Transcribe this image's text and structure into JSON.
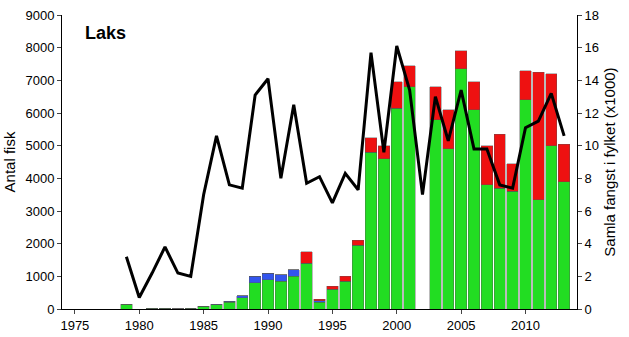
{
  "chart_data": {
    "type": "bar",
    "title": "Laks",
    "y_label": "Antal fisk",
    "y2_label": "Samla fangst i fylket (x1000)",
    "stacked": true,
    "grid": false,
    "x": [
      1979,
      1980,
      1981,
      1982,
      1983,
      1984,
      1985,
      1986,
      1987,
      1988,
      1989,
      1990,
      1991,
      1992,
      1993,
      1994,
      1995,
      1996,
      1997,
      1998,
      1999,
      2000,
      2001,
      2002,
      2003,
      2004,
      2005,
      2006,
      2007,
      2008,
      2009,
      2010,
      2011,
      2012,
      2013
    ],
    "series": [
      {
        "type": "bar",
        "color": "#22dd22",
        "values": [
          150,
          0,
          20,
          20,
          10,
          30,
          80,
          130,
          200,
          350,
          800,
          900,
          850,
          1000,
          1400,
          200,
          600,
          850,
          1950,
          4800,
          4600,
          6150,
          6800,
          null,
          5800,
          4900,
          7350,
          6100,
          3800,
          3700,
          3600,
          6400,
          3350,
          5000,
          3900
        ]
      },
      {
        "type": "bar",
        "color": "#3355ee",
        "values": [
          0,
          0,
          0,
          0,
          0,
          0,
          0,
          20,
          30,
          60,
          200,
          200,
          200,
          200,
          0,
          50,
          0,
          0,
          0,
          0,
          0,
          0,
          0,
          null,
          0,
          0,
          0,
          0,
          0,
          0,
          0,
          0,
          0,
          0,
          0
        ]
      },
      {
        "type": "bar",
        "color": "#ee1111",
        "values": [
          0,
          0,
          0,
          0,
          0,
          0,
          0,
          0,
          0,
          0,
          0,
          0,
          0,
          0,
          350,
          50,
          100,
          150,
          150,
          450,
          400,
          800,
          650,
          null,
          1000,
          1200,
          550,
          850,
          1200,
          1650,
          850,
          900,
          3900,
          2200,
          1150
        ]
      },
      {
        "type": "line",
        "axis": "y2",
        "color": "#000000",
        "values": [
          3.2,
          0.7,
          2.2,
          3.8,
          2.2,
          2.0,
          7.0,
          10.6,
          7.6,
          7.4,
          13.1,
          14.1,
          8.0,
          12.5,
          7.7,
          8.1,
          6.5,
          8.3,
          7.3,
          15.7,
          9.6,
          16.1,
          13.4,
          7.0,
          13.0,
          10.3,
          13.4,
          9.8,
          9.8,
          7.6,
          7.4,
          11.1,
          11.5,
          13.2,
          10.6
        ]
      }
    ],
    "xlim": [
      1974,
      2014
    ],
    "xticks": [
      1975,
      1980,
      1985,
      1990,
      1995,
      2000,
      2005,
      2010
    ],
    "ylim": [
      0,
      9000
    ],
    "yticks": [
      0,
      1000,
      2000,
      3000,
      4000,
      5000,
      6000,
      7000,
      8000,
      9000
    ],
    "y2lim": [
      0,
      18
    ],
    "y2ticks": [
      0,
      2,
      4,
      6,
      8,
      10,
      12,
      14,
      16,
      18
    ]
  }
}
